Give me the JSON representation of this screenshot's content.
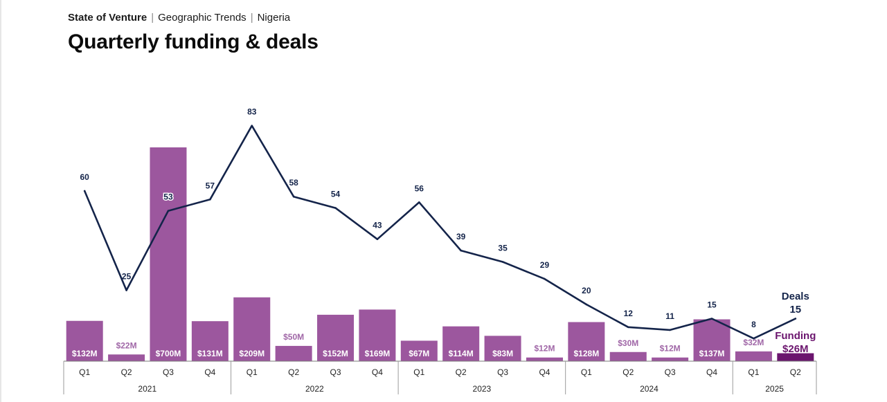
{
  "header": {
    "breadcrumb": [
      "State of Venture",
      "Geographic Trends",
      "Nigeria"
    ],
    "title": "Quarterly funding & deals"
  },
  "colors": {
    "bar": "#9c579e",
    "bar_highlight": "#6b156e",
    "line": "#14244a",
    "funding_label": "#a067a7"
  },
  "chart_data": {
    "type": "bar",
    "categories": [
      "Q1",
      "Q2",
      "Q3",
      "Q4",
      "Q1",
      "Q2",
      "Q3",
      "Q4",
      "Q1",
      "Q2",
      "Q3",
      "Q4",
      "Q1",
      "Q2",
      "Q3",
      "Q4",
      "Q1",
      "Q2"
    ],
    "years": [
      {
        "label": "2021",
        "quarters": 4
      },
      {
        "label": "2022",
        "quarters": 4
      },
      {
        "label": "2023",
        "quarters": 4
      },
      {
        "label": "2024",
        "quarters": 4
      },
      {
        "label": "2025",
        "quarters": 2
      }
    ],
    "series": [
      {
        "name": "Funding",
        "type": "bar",
        "values": [
          132,
          22,
          700,
          131,
          209,
          50,
          152,
          169,
          67,
          114,
          83,
          12,
          128,
          30,
          12,
          137,
          32,
          26
        ],
        "labels": [
          "$132M",
          "$22M",
          "$700M",
          "$131M",
          "$209M",
          "$50M",
          "$152M",
          "$169M",
          "$67M",
          "$114M",
          "$83M",
          "$12M",
          "$128M",
          "$30M",
          "$12M",
          "$137M",
          "$32M",
          "$26M"
        ]
      },
      {
        "name": "Deals",
        "type": "line",
        "values": [
          60,
          25,
          53,
          57,
          83,
          58,
          54,
          43,
          56,
          39,
          35,
          29,
          20,
          12,
          11,
          15,
          8,
          15
        ],
        "labels": [
          "60",
          "25",
          "53",
          "57",
          "83",
          "58",
          "54",
          "43",
          "56",
          "39",
          "35",
          "29",
          "20",
          "12",
          "11",
          "15",
          "8",
          "15"
        ]
      }
    ],
    "legend": {
      "deals_name": "Deals",
      "deals_latest": "15",
      "funding_name": "Funding",
      "funding_latest": "$26M"
    }
  }
}
